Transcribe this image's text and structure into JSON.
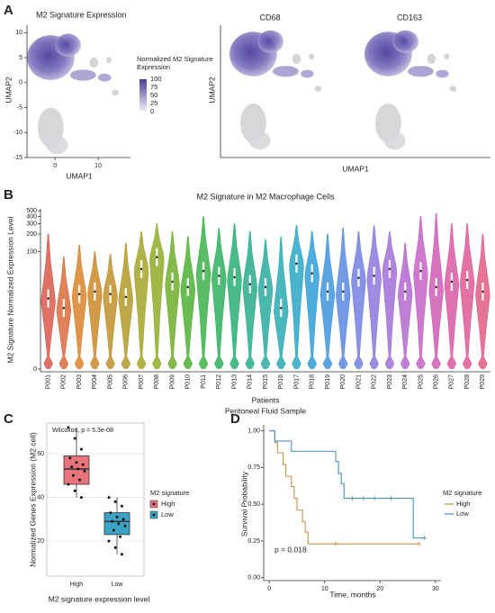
{
  "panel_labels": [
    "A",
    "B",
    "C",
    "D"
  ],
  "chart_data": [
    {
      "type": "umap",
      "title": "M2 Signature Expression",
      "xlabel": "UMAP1",
      "ylabel": "UMAP2",
      "xlim": [
        -6.5,
        17.5
      ],
      "xticks": [
        0,
        10
      ],
      "ylim": [
        -15,
        11.5
      ],
      "yticks": [
        -15,
        -10,
        -5,
        0,
        5,
        10
      ],
      "color": "#5b4ea8",
      "legend_title": "Normalized M2 Signature Expression",
      "colorbar_lim": [
        0,
        100
      ],
      "colorbar_ticks": [
        100,
        75,
        50,
        25,
        0
      ]
    },
    {
      "type": "umap_pair",
      "titles": [
        "CD68",
        "CD163"
      ],
      "xlabel": "UMAP1",
      "ylabel": "UMAP2",
      "color": "#5b4ea8"
    },
    {
      "type": "violin",
      "title": "M2 Signature in M2 Macrophage Cells",
      "ylabel": "M2 Signature Normalized Expression Level",
      "xlabel": "Patients",
      "subtitle": "Peritoneal Fluid Sample",
      "scale": "log1p",
      "ylim": [
        0,
        540
      ],
      "yticks": [
        0,
        100,
        200,
        300,
        400,
        500
      ],
      "categories": [
        "P001",
        "P002",
        "P003",
        "P004",
        "P005",
        "P006",
        "P007",
        "P008",
        "P009",
        "P010",
        "P011",
        "P012",
        "P013",
        "P014",
        "P015",
        "P016",
        "P017",
        "P018",
        "P019",
        "P020",
        "P021",
        "P022",
        "P023",
        "P024",
        "P025",
        "P026",
        "P027",
        "P028",
        "P029"
      ],
      "medians": [
        15,
        10,
        18,
        20,
        18,
        16,
        50,
        80,
        30,
        24,
        46,
        38,
        36,
        27,
        24,
        10,
        62,
        42,
        20,
        20,
        35,
        38,
        50,
        20,
        46,
        24,
        30,
        32,
        20
      ],
      "maxima": [
        200,
        80,
        130,
        100,
        90,
        140,
        220,
        300,
        220,
        180,
        400,
        250,
        300,
        220,
        160,
        180,
        280,
        220,
        200,
        250,
        220,
        280,
        220,
        140,
        400,
        450,
        300,
        300,
        200
      ],
      "colors": [
        "#d9594c",
        "#d96b3c",
        "#d9842c",
        "#c98a2a",
        "#c0902a",
        "#b39a28",
        "#a3a527",
        "#8fac28",
        "#6fae2c",
        "#4fb034",
        "#3cb14a",
        "#2fb05e",
        "#2aae74",
        "#2aad8a",
        "#2aac9f",
        "#2aaab4",
        "#2aa6c6",
        "#2f9fd6",
        "#3f95de",
        "#5a8ae0",
        "#7480e0",
        "#8c78dc",
        "#a06fd6",
        "#b468cf",
        "#c462c4",
        "#d05cb4",
        "#d95aa3",
        "#de5a92",
        "#e05c82"
      ]
    },
    {
      "type": "box",
      "annotation": "Wilcoxon, p = 5.3e-08",
      "ylabel": "Normalized Genes Expression (M2 cell)",
      "xlabel": "M2 signature expression level",
      "legend_title": "M2 signature",
      "ylim": [
        4,
        74
      ],
      "yticks": [
        20,
        40,
        60
      ],
      "series": [
        {
          "name": "High",
          "color": "#e8737a",
          "low": 40,
          "q1": 46,
          "median": 53,
          "q3": 59,
          "high": 72,
          "points": [
            72,
            67,
            62,
            58,
            56,
            55,
            54,
            53,
            52,
            50,
            48,
            46,
            43,
            40
          ]
        },
        {
          "name": "Low",
          "color": "#3ba3c4",
          "low": 14,
          "q1": 23,
          "median": 29,
          "q3": 33,
          "high": 40,
          "points": [
            40,
            38,
            36,
            33,
            31,
            30,
            29,
            28,
            27,
            25,
            22,
            20,
            17,
            14
          ]
        }
      ]
    },
    {
      "type": "km",
      "annotation": "p = 0.018",
      "xlabel": "Time, months",
      "ylabel": "Survival Probability",
      "legend_title": "M2 signature",
      "xlim": [
        -1,
        31
      ],
      "xticks": [
        0,
        10,
        20,
        30
      ],
      "ylim": [
        -0.02,
        1.04
      ],
      "yticks": [
        {
          "value": 0,
          "label": "0.00"
        },
        {
          "value": 0.25,
          "label": "0.25"
        },
        {
          "value": 0.5,
          "label": "0.50"
        },
        {
          "value": 0.75,
          "label": "0.75"
        },
        {
          "value": 1,
          "label": "1.00"
        }
      ],
      "series": [
        {
          "name": "High",
          "color": "#c8914a",
          "x": [
            0,
            1,
            1.5,
            2.5,
            3,
            4,
            4.5,
            5,
            6,
            6.5,
            7,
            8,
            27
          ],
          "values": [
            1,
            0.92,
            0.85,
            0.77,
            0.69,
            0.62,
            0.54,
            0.46,
            0.38,
            0.31,
            0.23,
            0.23,
            0.23
          ],
          "censor_x": [
            12,
            27
          ]
        },
        {
          "name": "Low",
          "color": "#4a90c8",
          "x": [
            0,
            1,
            4,
            12,
            12.5,
            13,
            13.5,
            26,
            28
          ],
          "values": [
            1,
            0.93,
            0.86,
            0.79,
            0.71,
            0.64,
            0.54,
            0.27,
            0.27
          ],
          "censor_x": [
            15,
            17,
            19,
            22,
            28
          ]
        }
      ]
    }
  ]
}
